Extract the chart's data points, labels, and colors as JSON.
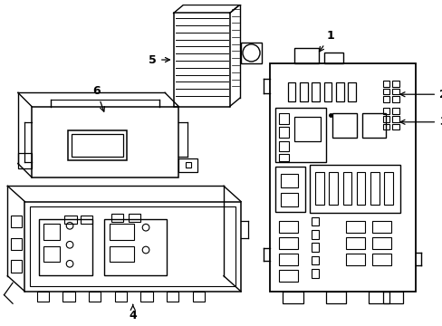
{
  "background_color": "#ffffff",
  "line_color": "#000000",
  "label_color": "#000000",
  "fig_w": 4.89,
  "fig_h": 3.6,
  "dpi": 100
}
